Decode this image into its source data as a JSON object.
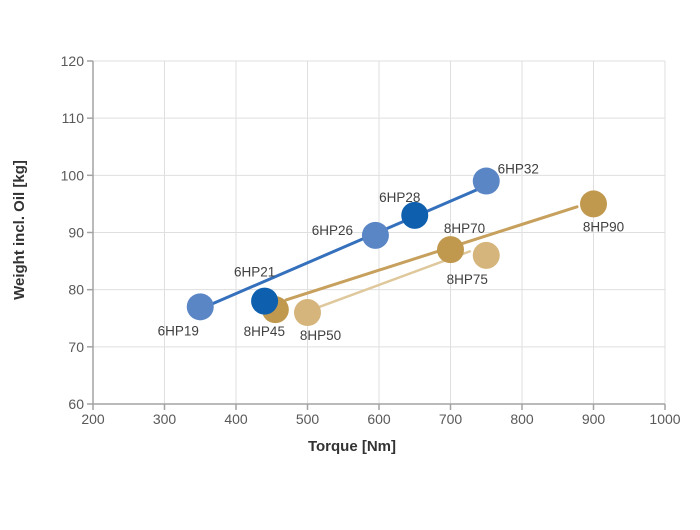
{
  "figure": {
    "background": "#FFFFFF"
  },
  "chart_data": {
    "type": "scatter",
    "title": "",
    "xlabel": "Torque [Nm]",
    "ylabel": "Weight incl. Oil [kg]",
    "xlim": [
      200,
      1000
    ],
    "x_tick_step": 100,
    "x_tick_labels": [
      "200",
      "300",
      "400",
      "500",
      "600",
      "700",
      "800",
      "900",
      "1000"
    ],
    "ylim": [
      60,
      120
    ],
    "y_tick_step": 10,
    "y_tick_labels": [
      "60",
      "70",
      "80",
      "90",
      "100",
      "110",
      "120"
    ],
    "grid": true,
    "legend": false,
    "marker_radius": 13.5,
    "series": [
      {
        "id": "8hp-dark",
        "name": "8HP (dark gold markers)",
        "marker_color": "#C0994F",
        "trendline": {
          "x": [
            470,
            877
          ],
          "y": [
            78.2,
            94.5
          ],
          "color": "#C6A05C",
          "width": 3
        },
        "points": [
          {
            "label": "8HP45",
            "x": 455,
            "y": 76.5,
            "label_dx": -11,
            "label_dy": 22
          },
          {
            "label": "8HP70",
            "x": 700,
            "y": 87,
            "label_dx": 14,
            "label_dy": -21
          },
          {
            "label": "8HP90",
            "x": 900,
            "y": 95,
            "label_dx": 10,
            "label_dy": 23
          }
        ]
      },
      {
        "id": "8hp-light",
        "name": "8HP (light tan markers)",
        "marker_color": "#D5B57B",
        "trendline": {
          "x": [
            517,
            727
          ],
          "y": [
            77.0,
            86.7
          ],
          "color": "#DFC89C",
          "width": 2.5
        },
        "points": [
          {
            "label": "8HP50",
            "x": 500,
            "y": 76,
            "label_dx": 13,
            "label_dy": 23
          },
          {
            "label": "8HP75",
            "x": 750,
            "y": 86,
            "label_dx": -19,
            "label_dy": 24
          }
        ]
      },
      {
        "id": "6hp-light",
        "name": "6HP (light blue markers)",
        "marker_color": "#5B86C6",
        "trendline": {
          "x": [
            359,
            741
          ],
          "y": [
            77.1,
            97.7
          ],
          "color": "#3570BC",
          "width": 3
        },
        "points": [
          {
            "label": "6HP19",
            "x": 350,
            "y": 77,
            "label_dx": -22,
            "label_dy": 24
          },
          {
            "label": "6HP26",
            "x": 595,
            "y": 89.5,
            "label_dx": -43,
            "label_dy": -5
          },
          {
            "label": "6HP32",
            "x": 750,
            "y": 99,
            "label_dx": 32,
            "label_dy": -12
          }
        ]
      },
      {
        "id": "6hp-dark",
        "name": "6HP (dark blue markers)",
        "marker_color": "#0E60AE",
        "trendline": null,
        "points": [
          {
            "label": "6HP21",
            "x": 440,
            "y": 78,
            "label_dx": -10,
            "label_dy": -29
          },
          {
            "label": "6HP28",
            "x": 650,
            "y": 93,
            "label_dx": -15,
            "label_dy": -18
          }
        ]
      }
    ],
    "colors": {
      "grid": "#DFDFDF",
      "axis": "#A3A3A3",
      "tick_text": "#595959",
      "axis_title_text": "#333333",
      "point_label_text": "#404040",
      "background": "#FFFFFF"
    }
  }
}
